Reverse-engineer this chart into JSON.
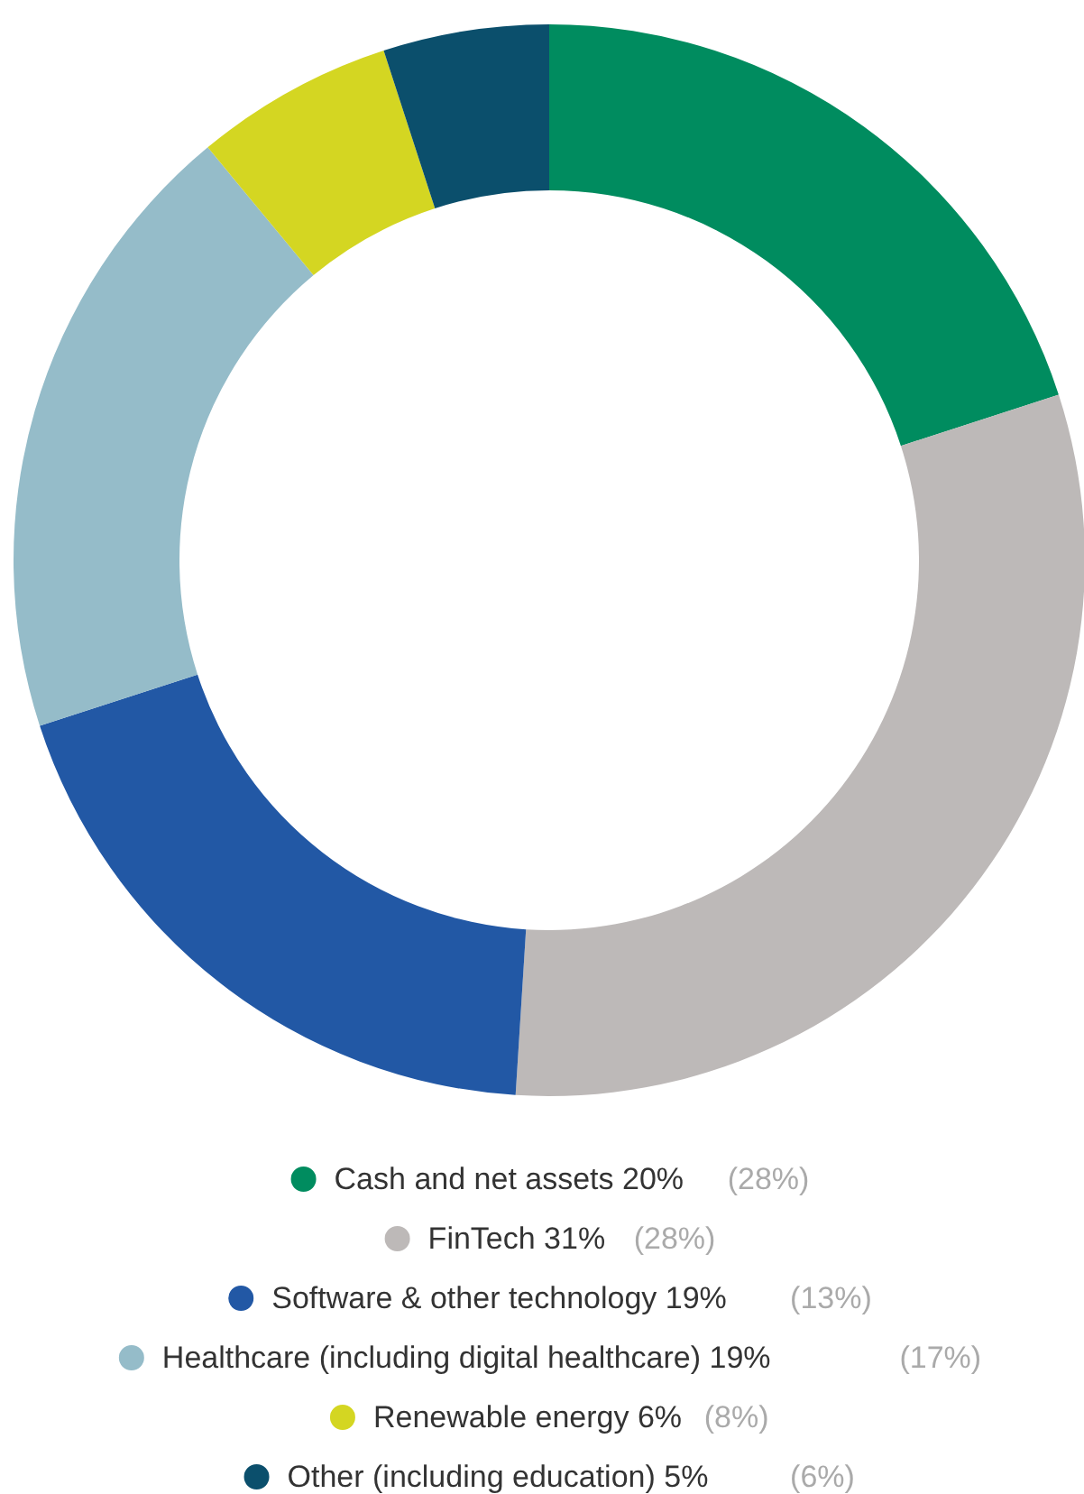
{
  "chart_data": {
    "type": "donut",
    "categories": [
      "Cash and net assets",
      "FinTech",
      "Software & other technology",
      "Healthcare (including digital healthcare)",
      "Renewable energy",
      "Other (including education)"
    ],
    "values": [
      20,
      31,
      19,
      19,
      6,
      5
    ],
    "colors": [
      "#008c5f",
      "#bdb9b8",
      "#2258a5",
      "#95bcc9",
      "#d4d622",
      "#0b4f6c"
    ],
    "value_labels": [
      "20%",
      "31%",
      "19%",
      "19%",
      "6%",
      "5%"
    ],
    "annotations": [
      "(28%)",
      "(28%)",
      "(13%)",
      "(17%)",
      "(8%)",
      "(6%)"
    ],
    "legend": "bottom"
  }
}
